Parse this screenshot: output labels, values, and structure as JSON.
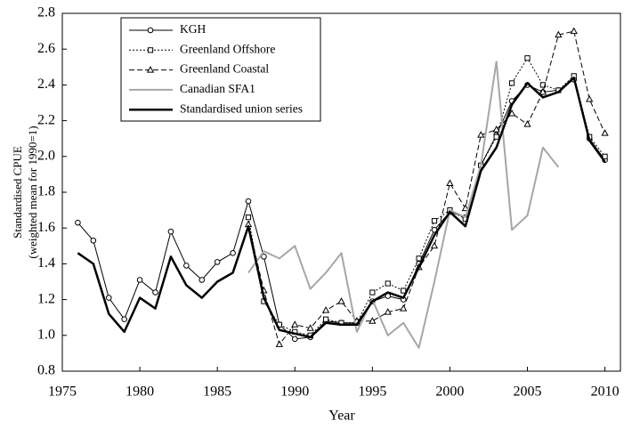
{
  "chart_data": {
    "type": "line",
    "x_label": "Year",
    "y_label": [
      "Standardised CPUE",
      "(weighted mean for 1990=1)"
    ],
    "x": [
      1976,
      1977,
      1978,
      1979,
      1980,
      1981,
      1982,
      1983,
      1984,
      1985,
      1986,
      1987,
      1988,
      1989,
      1990,
      1991,
      1992,
      1993,
      1994,
      1995,
      1996,
      1997,
      1998,
      1999,
      2000,
      2001,
      2002,
      2003,
      2004,
      2005,
      2006,
      2007,
      2008,
      2009,
      2010
    ],
    "series": [
      {
        "name": "KGH",
        "color": "#000000",
        "width": 1,
        "dash": "solid",
        "marker": "circle",
        "values": [
          1.63,
          1.53,
          1.21,
          1.09,
          1.31,
          1.24,
          1.58,
          1.39,
          1.31,
          1.41,
          1.46,
          1.75,
          1.44,
          1.06,
          0.98,
          0.99,
          1.08,
          1.07,
          1.07,
          1.19,
          1.22,
          1.2,
          1.4,
          1.59,
          1.69,
          1.66,
          1.95,
          2.12,
          2.31,
          2.4,
          2.36,
          2.37,
          2.43,
          2.1,
          1.98
        ]
      },
      {
        "name": "Greenland Offshore",
        "color": "#000000",
        "width": 1,
        "dash": "dotted",
        "marker": "square",
        "values": [
          null,
          null,
          null,
          null,
          null,
          null,
          null,
          null,
          null,
          null,
          null,
          1.66,
          1.19,
          1.06,
          1.02,
          1.0,
          1.09,
          1.07,
          1.07,
          1.24,
          1.29,
          1.25,
          1.43,
          1.64,
          1.7,
          1.65,
          1.95,
          2.11,
          2.41,
          2.55,
          2.4,
          2.37,
          2.45,
          2.11,
          2.0
        ]
      },
      {
        "name": "Greenland Coastal",
        "color": "#000000",
        "width": 1,
        "dash": "dashed",
        "marker": "triangle",
        "values": [
          null,
          null,
          null,
          null,
          null,
          null,
          null,
          null,
          null,
          null,
          null,
          1.62,
          1.25,
          0.95,
          1.06,
          1.04,
          1.14,
          1.19,
          1.08,
          1.08,
          1.13,
          1.15,
          1.38,
          1.5,
          1.85,
          1.71,
          2.12,
          2.15,
          2.24,
          2.18,
          2.36,
          2.68,
          2.7,
          2.32,
          2.13
        ]
      },
      {
        "name": "Canadian SFA1",
        "color": "#a6a6a6",
        "width": 2,
        "dash": "solid",
        "marker": "none",
        "values": [
          null,
          null,
          null,
          null,
          null,
          null,
          null,
          null,
          null,
          null,
          null,
          1.35,
          1.47,
          1.43,
          1.5,
          1.26,
          1.35,
          1.46,
          1.02,
          1.2,
          1.0,
          1.07,
          0.93,
          1.3,
          1.7,
          1.66,
          1.95,
          2.53,
          1.59,
          1.67,
          2.05,
          1.94,
          null,
          null,
          null
        ]
      },
      {
        "name": "Standardised union series",
        "color": "#000000",
        "width": 2.5,
        "dash": "solid",
        "marker": "none",
        "values": [
          1.46,
          1.4,
          1.12,
          1.02,
          1.21,
          1.15,
          1.44,
          1.28,
          1.21,
          1.3,
          1.35,
          1.61,
          1.21,
          1.03,
          1.01,
          0.99,
          1.07,
          1.06,
          1.06,
          1.19,
          1.24,
          1.21,
          1.38,
          1.56,
          1.69,
          1.61,
          1.92,
          2.05,
          2.29,
          2.41,
          2.33,
          2.36,
          2.44,
          2.09,
          1.97
        ]
      }
    ],
    "xlim": [
      1975,
      2011
    ],
    "xticks": [
      1975,
      1980,
      1985,
      1990,
      1995,
      2000,
      2005,
      2010
    ],
    "ylim": [
      0.8,
      2.8
    ],
    "yticks": [
      0.8,
      {
        "value": 1,
        "label": "1.0"
      },
      1.2,
      1.4,
      1.6,
      1.8,
      {
        "value": 2,
        "label": "2.0"
      },
      2.2,
      2.4,
      2.6,
      2.8
    ],
    "grid": false,
    "legend": "top-left"
  }
}
